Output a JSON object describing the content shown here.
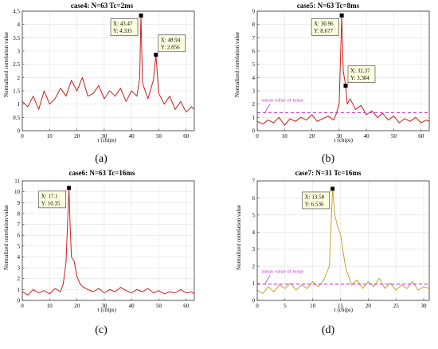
{
  "figure": {
    "panels": [
      {
        "title": "case4: N=63 Tc=2ms",
        "caption": "(a)",
        "xlabel": "τ (chips)",
        "ylabel": "Normalized correlation value",
        "xticks": [
          "0",
          "10",
          "20",
          "30",
          "40",
          "50",
          "60"
        ],
        "yticks": [
          "0",
          "0.5",
          "1",
          "1.5",
          "2",
          "2.5",
          "3",
          "3.5",
          "4",
          "4.5"
        ]
      },
      {
        "title": "case5: N=63 Tc=8ms",
        "caption": "(b)",
        "xlabel": "τ (chips)",
        "ylabel": "Normalized correlation value",
        "xticks": [
          "0",
          "10",
          "20",
          "30",
          "40",
          "50",
          "60"
        ],
        "yticks": [
          "0",
          "1",
          "2",
          "3",
          "4",
          "5",
          "6",
          "7",
          "8",
          "9"
        ],
        "noise_label": "mean value of noise"
      },
      {
        "title": "case6: N=63 Tc=16ms",
        "caption": "(c)",
        "xlabel": "τ (chips)",
        "ylabel": "Normalized correlation value",
        "xticks": [
          "0",
          "10",
          "20",
          "30",
          "40",
          "50",
          "60"
        ],
        "yticks": [
          "0",
          "1",
          "2",
          "3",
          "4",
          "5",
          "6",
          "7",
          "8",
          "9",
          "10",
          "11"
        ]
      },
      {
        "title": "case7: N=31 Tc=16ms",
        "caption": "(d)",
        "xlabel": "τ (chips)",
        "ylabel": "Normalized correlation value",
        "xticks": [
          "0",
          "5",
          "10",
          "15",
          "20",
          "25",
          "30"
        ],
        "yticks": [
          "0",
          "1",
          "2",
          "3",
          "4",
          "5",
          "6",
          "7"
        ],
        "noise_label": "mean value of noise"
      }
    ]
  },
  "chart_data": [
    {
      "type": "line",
      "title": "case4: N=63 Tc=2ms",
      "xlabel": "τ (chips)",
      "ylabel": "Normalized correlation value",
      "xlim": [
        0,
        63
      ],
      "ylim": [
        0,
        4.5
      ],
      "grid": true,
      "line_color": "#cc1f1a",
      "x": [
        0,
        2,
        4,
        6,
        8,
        10,
        12,
        14,
        16,
        18,
        20,
        22,
        24,
        26,
        28,
        30,
        32,
        34,
        36,
        38,
        40,
        42,
        43,
        43.47,
        44,
        46,
        48,
        48.94,
        50,
        52,
        54,
        56,
        58,
        60,
        62,
        63
      ],
      "y": [
        1.1,
        0.9,
        1.3,
        0.8,
        1.5,
        1.0,
        1.2,
        1.6,
        1.3,
        1.9,
        1.5,
        2.0,
        1.3,
        1.4,
        1.7,
        1.2,
        1.5,
        1.3,
        1.6,
        1.1,
        1.5,
        1.3,
        2.0,
        4.335,
        1.8,
        1.2,
        1.9,
        2.856,
        1.4,
        1.0,
        1.3,
        0.8,
        1.1,
        0.7,
        0.9,
        0.8
      ],
      "annotations": [
        {
          "x": 43.47,
          "y": 4.335,
          "text": [
            "X: 43.47",
            "Y: 4.335"
          ]
        },
        {
          "x": 48.94,
          "y": 2.856,
          "text": [
            "X: 48.94",
            "Y: 2.856"
          ]
        }
      ]
    },
    {
      "type": "line",
      "title": "case5: N=63 Tc=8ms",
      "xlabel": "τ (chips)",
      "ylabel": "Normalized correlation value",
      "xlim": [
        0,
        63
      ],
      "ylim": [
        0,
        9
      ],
      "grid": true,
      "line_color": "#cc1f1a",
      "mean_noise": 1.35,
      "x": [
        0,
        2,
        4,
        6,
        8,
        10,
        12,
        14,
        16,
        18,
        20,
        22,
        24,
        26,
        28,
        29,
        30,
        30.96,
        31.5,
        32.37,
        33,
        34,
        36,
        38,
        40,
        42,
        44,
        46,
        48,
        50,
        52,
        54,
        56,
        58,
        60,
        62,
        63
      ],
      "y": [
        0.7,
        0.5,
        0.8,
        0.6,
        1.0,
        0.4,
        0.9,
        0.7,
        1.0,
        0.8,
        1.2,
        0.7,
        0.9,
        1.1,
        0.8,
        1.3,
        2.0,
        8.677,
        4.5,
        3.384,
        2.0,
        2.4,
        1.6,
        1.9,
        1.2,
        1.5,
        1.0,
        1.3,
        0.8,
        1.1,
        0.6,
        0.9,
        0.7,
        1.0,
        0.6,
        0.8,
        0.7
      ],
      "annotations": [
        {
          "x": 30.96,
          "y": 8.677,
          "text": [
            "X: 30.96",
            "Y: 8.677"
          ]
        },
        {
          "x": 32.37,
          "y": 3.384,
          "text": [
            "X: 32.37",
            "Y: 3.384"
          ]
        }
      ]
    },
    {
      "type": "line",
      "title": "case6: N=63 Tc=16ms",
      "xlabel": "τ (chips)",
      "ylabel": "Normalized correlation value",
      "xlim": [
        0,
        63
      ],
      "ylim": [
        0,
        11
      ],
      "grid": true,
      "line_color": "#cc1f1a",
      "x": [
        0,
        2,
        4,
        6,
        8,
        10,
        12,
        14,
        15,
        16,
        17.1,
        17.5,
        18,
        19,
        20,
        21,
        22,
        24,
        26,
        28,
        30,
        32,
        34,
        36,
        38,
        40,
        42,
        44,
        46,
        48,
        50,
        52,
        54,
        56,
        58,
        60,
        62,
        63
      ],
      "y": [
        0.8,
        0.5,
        1.0,
        0.7,
        0.9,
        0.6,
        1.1,
        0.8,
        1.5,
        3.5,
        10.35,
        7.0,
        4.0,
        3.6,
        2.2,
        1.6,
        1.3,
        1.0,
        0.8,
        1.1,
        0.7,
        1.0,
        0.8,
        1.2,
        0.9,
        0.7,
        1.0,
        0.8,
        1.1,
        0.7,
        0.9,
        0.6,
        0.8,
        0.7,
        1.0,
        0.7,
        0.8,
        0.6
      ],
      "annotations": [
        {
          "x": 17.1,
          "y": 10.35,
          "text": [
            "X: 17.1",
            "Y: 10.35"
          ]
        }
      ]
    },
    {
      "type": "line",
      "title": "case7: N=31 Tc=16ms",
      "xlabel": "τ (chips)",
      "ylabel": "Normalized correlation value",
      "xlim": [
        0,
        31
      ],
      "ylim": [
        0,
        7
      ],
      "grid": true,
      "line_color": "#c9a227",
      "mean_noise": 0.95,
      "x": [
        0,
        1,
        2,
        3,
        4,
        5,
        6,
        7,
        8,
        9,
        10,
        11,
        12,
        13,
        13.58,
        14,
        14.5,
        15,
        15.5,
        16,
        16.5,
        17,
        18,
        19,
        20,
        21,
        22,
        23,
        24,
        25,
        26,
        27,
        28,
        29,
        30,
        31
      ],
      "y": [
        0.6,
        0.4,
        0.8,
        0.5,
        0.9,
        0.7,
        1.0,
        0.6,
        0.9,
        0.7,
        1.1,
        0.8,
        1.2,
        2.0,
        6.536,
        5.0,
        4.3,
        3.9,
        2.8,
        1.8,
        1.4,
        0.9,
        1.2,
        0.7,
        1.1,
        0.8,
        1.3,
        0.7,
        1.0,
        0.6,
        0.9,
        0.7,
        1.1,
        0.6,
        0.8,
        0.7
      ],
      "annotations": [
        {
          "x": 13.58,
          "y": 6.536,
          "text": [
            "X: 13.58",
            "Y: 6.536"
          ]
        }
      ]
    }
  ]
}
